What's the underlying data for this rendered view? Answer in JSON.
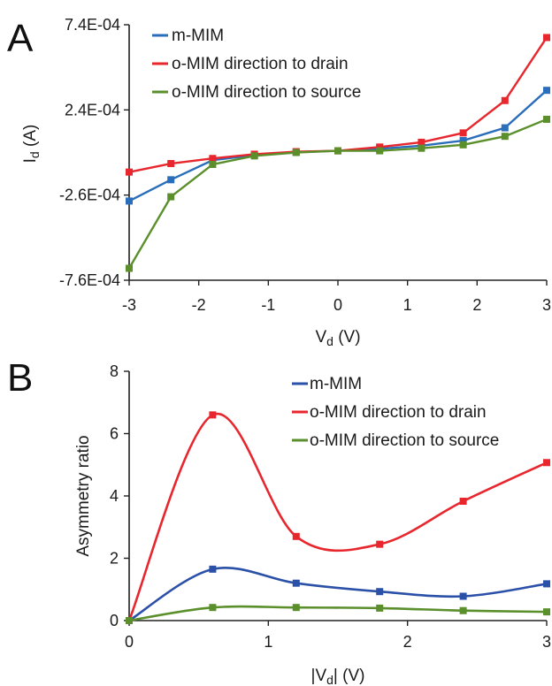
{
  "panels": [
    {
      "letter": "A",
      "chart_data": {
        "type": "line",
        "xlabel": "Vd (V)",
        "xlabel_parts": [
          "V",
          "d",
          " (V)"
        ],
        "ylabel": "Id (A)",
        "ylabel_parts": [
          "I",
          "d",
          " (A)"
        ],
        "xlim": [
          -3,
          3
        ],
        "ylim": [
          -0.00076,
          0.00074
        ],
        "x_ticks": [
          -3,
          -2,
          -1,
          0,
          1,
          2,
          3
        ],
        "x_tick_labels": [
          "-3",
          "-2",
          "-1",
          "0",
          "1",
          "2",
          "3"
        ],
        "y_ticks": [
          -0.00076,
          -0.00026,
          0.00024,
          0.00074
        ],
        "y_tick_labels": [
          "-7.6E-04",
          "-2.6E-04",
          "2.4E-04",
          "7.4E-04"
        ],
        "grid": false,
        "legend_position": "top-left",
        "x": [
          -3,
          -2.4,
          -1.8,
          -1.2,
          -0.6,
          0,
          0.6,
          1.2,
          1.8,
          2.4,
          3
        ],
        "series": [
          {
            "name": "m-MIM",
            "color": "#2a6ebb",
            "values": [
              -0.000295,
              -0.00017,
              -5.5e-05,
              -2.5e-05,
              -8e-06,
              0.0,
              1.2e-05,
              3e-05,
              6e-05,
              0.000135,
              0.000355
            ]
          },
          {
            "name": "o-MIM direction to drain",
            "color": "#e8262d",
            "values": [
              -0.000125,
              -7.5e-05,
              -4.5e-05,
              -2e-05,
              -5e-06,
              0.0,
              2.2e-05,
              5e-05,
              0.000105,
              0.000295,
              0.000665
            ]
          },
          {
            "name": "o-MIM direction to source",
            "color": "#5a8f2c",
            "values": [
              -0.00069,
              -0.00027,
              -8e-05,
              -3e-05,
              -1e-05,
              0.0,
              0.0,
              1.5e-05,
              3.5e-05,
              8.5e-05,
              0.000185
            ]
          }
        ]
      }
    },
    {
      "letter": "B",
      "chart_data": {
        "type": "line",
        "smooth": true,
        "xlabel": "|Vd| (V)",
        "xlabel_parts": [
          "|V",
          "d",
          "| (V)"
        ],
        "ylabel": "Asymmetry ratio",
        "xlim": [
          0,
          3
        ],
        "ylim": [
          0,
          8
        ],
        "x_ticks": [
          0,
          1,
          2,
          3
        ],
        "x_tick_labels": [
          "0",
          "1",
          "2",
          "3"
        ],
        "y_ticks": [
          0,
          2,
          4,
          6,
          8
        ],
        "y_tick_labels": [
          "0",
          "2",
          "4",
          "6",
          "8"
        ],
        "grid": false,
        "legend_position": "top-right",
        "x": [
          0,
          0.6,
          1.2,
          1.8,
          2.4,
          3
        ],
        "series": [
          {
            "name": "m-MIM",
            "color": "#2b50a8",
            "values": [
              0,
              1.65,
              1.2,
              0.93,
              0.78,
              1.18
            ]
          },
          {
            "name": "o-MIM direction to drain",
            "color": "#e8262d",
            "values": [
              0,
              6.6,
              2.7,
              2.45,
              3.83,
              5.07
            ]
          },
          {
            "name": "o-MIM direction to source",
            "color": "#5a8f2c",
            "values": [
              0,
              0.42,
              0.42,
              0.4,
              0.32,
              0.28
            ]
          }
        ]
      }
    }
  ]
}
